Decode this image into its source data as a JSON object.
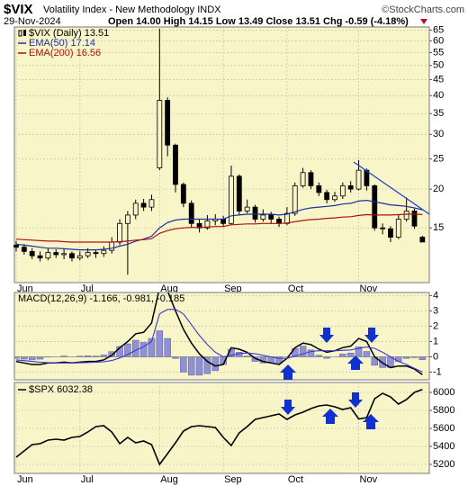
{
  "header": {
    "symbol": "$VIX",
    "name": "Volatility Index - New Methodology INDX",
    "credit": "©StockCharts.com",
    "date": "29-Nov-2024",
    "quote": "Open 14.00  High 14.15  Low 13.49  Close 13.51  Chg -0.59 (-4.18%)"
  },
  "chart_data": [
    {
      "type": "candlestick",
      "log": true,
      "grid": true,
      "categories": [
        "Jun",
        null,
        null,
        null,
        null,
        null,
        null,
        null,
        "Jul",
        null,
        null,
        null,
        null,
        null,
        null,
        null,
        null,
        null,
        "Aug",
        null,
        null,
        null,
        null,
        null,
        null,
        null,
        "Sep",
        null,
        null,
        null,
        null,
        null,
        null,
        null,
        "Oct",
        null,
        null,
        null,
        null,
        null,
        null,
        null,
        null,
        "Nov",
        null,
        null,
        null,
        null,
        null,
        null,
        null,
        null
      ],
      "ylim": [
        10,
        66.5
      ],
      "yticks": [
        15,
        20,
        25,
        30,
        35,
        40,
        45,
        50,
        55,
        60,
        65
      ],
      "candles": {
        "name": "$VIX (Daily) 13.51",
        "color": "#000000",
        "open": [
          13.2,
          13.0,
          12.6,
          12.2,
          12.0,
          12.5,
          12.3,
          12.4,
          12.0,
          12.2,
          12.5,
          12.4,
          12.7,
          13.5,
          15.5,
          16.5,
          18.0,
          17.5,
          23.4,
          38.6,
          27.7,
          20.7,
          18.0,
          15.5,
          15.0,
          15.8,
          16.0,
          15.5,
          22.0,
          17.0,
          17.5,
          16.0,
          16.5,
          16.0,
          15.5,
          16.7,
          20.5,
          22.6,
          20.5,
          19.5,
          18.5,
          19.0,
          20.5,
          20.0,
          23.0,
          20.5,
          15.0,
          14.9,
          14.0,
          16.0,
          17.0,
          14.0
        ],
        "high": [
          13.6,
          13.3,
          12.9,
          12.6,
          12.9,
          12.8,
          12.8,
          12.6,
          12.6,
          12.9,
          12.8,
          13.1,
          14.0,
          16.0,
          17.0,
          18.5,
          18.6,
          19.2,
          65.7,
          39.5,
          28.0,
          21.0,
          18.4,
          16.0,
          16.5,
          16.6,
          16.4,
          23.8,
          22.3,
          18.5,
          17.8,
          17.2,
          16.9,
          16.3,
          17.5,
          21.0,
          23.4,
          23.0,
          21.0,
          19.9,
          19.6,
          21.0,
          21.2,
          24.8,
          23.3,
          20.7,
          15.5,
          15.2,
          16.5,
          18.8,
          17.3,
          14.15
        ],
        "low": [
          12.6,
          12.3,
          11.9,
          11.7,
          11.8,
          12.0,
          11.9,
          11.7,
          11.8,
          12.0,
          12.0,
          12.1,
          12.4,
          13.2,
          10.6,
          16.0,
          17.0,
          17.0,
          23.0,
          25.5,
          19.5,
          17.5,
          15.0,
          14.5,
          14.8,
          15.3,
          15.1,
          15.3,
          16.5,
          16.7,
          15.6,
          15.7,
          15.5,
          15.1,
          15.3,
          16.4,
          20.2,
          20.0,
          19.0,
          18.0,
          18.2,
          18.6,
          19.5,
          19.8,
          19.8,
          14.7,
          14.3,
          13.5,
          13.8,
          15.7,
          14.9,
          13.49
        ],
        "close": [
          13.0,
          12.6,
          12.2,
          12.0,
          12.5,
          12.3,
          12.4,
          12.0,
          12.2,
          12.5,
          12.4,
          12.7,
          13.5,
          15.5,
          16.5,
          18.0,
          17.5,
          18.5,
          38.6,
          27.7,
          20.7,
          18.0,
          15.5,
          15.0,
          15.8,
          16.0,
          15.5,
          22.0,
          17.0,
          17.5,
          16.0,
          16.5,
          16.0,
          15.5,
          16.7,
          20.5,
          22.6,
          20.5,
          19.5,
          18.5,
          19.0,
          20.5,
          20.0,
          23.0,
          20.5,
          15.0,
          14.9,
          14.0,
          16.0,
          17.0,
          15.2,
          13.51
        ]
      },
      "series": [
        {
          "name": "EMA(50) 17.14",
          "color": "#1f2f9f",
          "values": [
            13.3,
            13.2,
            13.1,
            13.0,
            12.9,
            12.9,
            12.85,
            12.8,
            12.75,
            12.75,
            12.75,
            12.8,
            12.9,
            13.1,
            13.3,
            13.6,
            13.8,
            14.1,
            15.0,
            15.6,
            15.9,
            16.0,
            16.0,
            16.0,
            16.0,
            16.0,
            16.0,
            16.4,
            16.5,
            16.6,
            16.6,
            16.6,
            16.6,
            16.5,
            16.6,
            16.9,
            17.2,
            17.4,
            17.5,
            17.6,
            17.7,
            17.9,
            18.0,
            18.3,
            18.4,
            18.2,
            18.0,
            17.8,
            17.7,
            17.6,
            17.4,
            17.14
          ]
        },
        {
          "name": "EMA(200) 16.56",
          "color": "#b01010",
          "values": [
            13.8,
            13.75,
            13.7,
            13.65,
            13.6,
            13.6,
            13.55,
            13.5,
            13.5,
            13.5,
            13.5,
            13.5,
            13.5,
            13.55,
            13.6,
            13.7,
            13.75,
            13.85,
            14.4,
            14.7,
            14.9,
            15.0,
            15.05,
            15.05,
            15.1,
            15.15,
            15.15,
            15.35,
            15.4,
            15.45,
            15.45,
            15.5,
            15.5,
            15.5,
            15.55,
            15.7,
            15.85,
            15.95,
            16.0,
            16.1,
            16.15,
            16.25,
            16.3,
            16.45,
            16.55,
            16.5,
            16.5,
            16.5,
            16.55,
            16.6,
            16.6,
            16.56
          ]
        }
      ]
    },
    {
      "type": "macd",
      "title": "MACD(12,26,9) -1.166, -0.981, -0.185",
      "grid": true,
      "ylim": [
        -1.5,
        4.2
      ],
      "yticks": [
        4,
        3,
        2,
        1,
        0,
        -1
      ],
      "series": [
        {
          "color": "#000000",
          "values": [
            -0.3,
            -0.4,
            -0.5,
            -0.5,
            -0.4,
            -0.4,
            -0.35,
            -0.4,
            -0.35,
            -0.3,
            -0.3,
            -0.2,
            0.1,
            0.6,
            1.0,
            1.5,
            1.6,
            2.2,
            4.5,
            4.3,
            3.0,
            1.8,
            0.9,
            0.2,
            -0.3,
            -0.6,
            -0.5,
            0.6,
            0.5,
            0.3,
            -0.1,
            -0.3,
            -0.4,
            -0.5,
            -0.1,
            0.6,
            0.9,
            0.8,
            0.5,
            0.3,
            0.4,
            0.6,
            0.7,
            1.2,
            1.0,
            0.0,
            -0.4,
            -0.7,
            -0.6,
            -0.6,
            -0.8,
            -1.166
          ]
        },
        {
          "color": "#3a3ad0",
          "values": [
            -0.2,
            -0.25,
            -0.3,
            -0.35,
            -0.38,
            -0.4,
            -0.4,
            -0.4,
            -0.39,
            -0.37,
            -0.35,
            -0.32,
            -0.24,
            -0.07,
            0.15,
            0.42,
            0.66,
            1.0,
            2.8,
            3.1,
            3.1,
            2.8,
            2.1,
            1.4,
            0.8,
            0.3,
            0.0,
            0.1,
            0.2,
            0.25,
            0.2,
            0.1,
            0.0,
            -0.1,
            -0.1,
            0.05,
            0.2,
            0.35,
            0.4,
            0.4,
            0.4,
            0.42,
            0.45,
            0.55,
            0.65,
            0.55,
            0.3,
            0.0,
            -0.3,
            -0.5,
            -0.75,
            -0.981
          ]
        }
      ],
      "histogram": {
        "color": "#9090d8",
        "values": [
          -0.1,
          -0.15,
          -0.2,
          -0.15,
          -0.02,
          0,
          0.05,
          0,
          0.04,
          0.07,
          0.05,
          0.12,
          0.34,
          0.67,
          0.85,
          1.08,
          0.94,
          1.2,
          1.7,
          1.2,
          -0.1,
          -1.0,
          -1.2,
          -1.2,
          -1.1,
          -0.9,
          -0.5,
          0.5,
          0.3,
          0.05,
          -0.3,
          -0.4,
          -0.4,
          -0.4,
          0,
          0.55,
          0.7,
          0.45,
          0.1,
          -0.1,
          0,
          0.18,
          0.25,
          0.65,
          0.35,
          -0.55,
          -0.7,
          -0.7,
          -0.3,
          -0.1,
          -0.05,
          -0.185
        ]
      }
    },
    {
      "type": "line",
      "title": "$SPX 6032.38",
      "grid": true,
      "categories": [
        "Jun",
        null,
        null,
        null,
        null,
        null,
        null,
        null,
        "Jul",
        null,
        null,
        null,
        null,
        null,
        null,
        null,
        null,
        null,
        "Aug",
        null,
        null,
        null,
        null,
        null,
        null,
        null,
        "Sep",
        null,
        null,
        null,
        null,
        null,
        null,
        null,
        "Oct",
        null,
        null,
        null,
        null,
        null,
        null,
        null,
        null,
        "Nov",
        null,
        null,
        null,
        null,
        null,
        null,
        null,
        null
      ],
      "ylim": [
        5100,
        6110
      ],
      "yticks": [
        6000,
        5800,
        5600,
        5400,
        5200
      ],
      "series": [
        {
          "color": "#000000",
          "values": [
            5280,
            5350,
            5420,
            5430,
            5470,
            5480,
            5470,
            5500,
            5510,
            5560,
            5620,
            5630,
            5560,
            5430,
            5500,
            5440,
            5460,
            5420,
            5200,
            5320,
            5440,
            5570,
            5620,
            5630,
            5620,
            5610,
            5500,
            5410,
            5550,
            5620,
            5700,
            5720,
            5740,
            5760,
            5700,
            5750,
            5780,
            5820,
            5850,
            5860,
            5840,
            5810,
            5830,
            5705,
            5720,
            5930,
            5990,
            5950,
            5870,
            5920,
            6000,
            6032.38
          ]
        }
      ]
    }
  ]
}
